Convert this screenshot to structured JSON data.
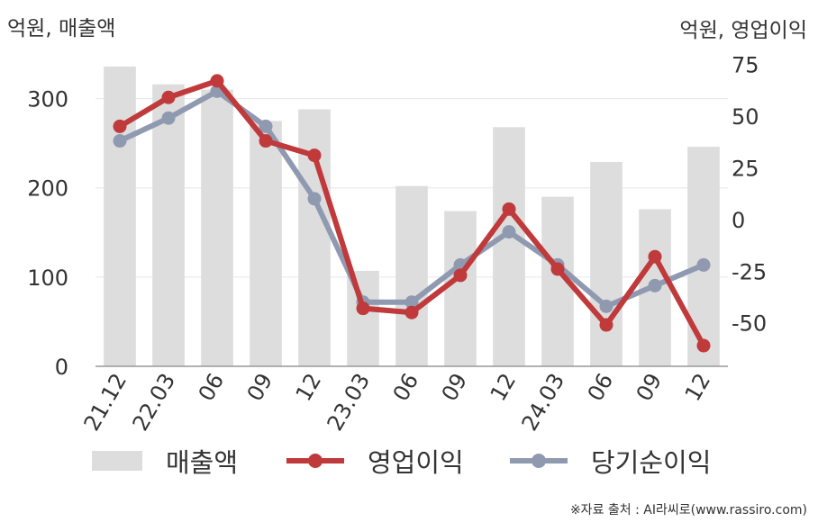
{
  "units": {
    "left": "억원, 매출액",
    "right": "억원, 영업이익"
  },
  "source": "※자료 출처 : AI라씨로(www.rassiro.com)",
  "colors": {
    "bar": "#dddddd",
    "operating": "#c0393b",
    "net": "#8f9ab1",
    "axis": "#999999",
    "grid": "#e6e6e6"
  },
  "legend": {
    "sales": "매출액",
    "operating": "영업이익",
    "net": "당기순이익"
  },
  "chart_data": {
    "type": "bar+line",
    "categories": [
      "21.12",
      "22.03",
      "06",
      "09",
      "12",
      "23.03",
      "06",
      "09",
      "12",
      "24.03",
      "06",
      "09",
      "12"
    ],
    "left_axis": {
      "ylim": [
        0,
        350
      ],
      "ticks": [
        0,
        100,
        200,
        300
      ]
    },
    "right_axis": {
      "ylim": [
        -71,
        80
      ],
      "ticks": [
        -50,
        -25,
        0,
        25,
        50,
        75
      ]
    },
    "grid": true,
    "legend_position": "bottom",
    "series": [
      {
        "name": "매출액",
        "kind": "bar",
        "axis": "left",
        "values": [
          336,
          316,
          310,
          275,
          288,
          107,
          202,
          174,
          268,
          190,
          229,
          176,
          246
        ]
      },
      {
        "name": "영업이익",
        "kind": "line",
        "axis": "right",
        "values": [
          45,
          59,
          67,
          38,
          31,
          -43,
          -45,
          -27,
          5,
          -24,
          -51,
          -18,
          -61
        ]
      },
      {
        "name": "당기순이익",
        "kind": "line",
        "axis": "right",
        "values": [
          38,
          49,
          62,
          45,
          10,
          -40,
          -40,
          -22,
          -6,
          -22,
          -42,
          -32,
          -22
        ]
      }
    ]
  }
}
